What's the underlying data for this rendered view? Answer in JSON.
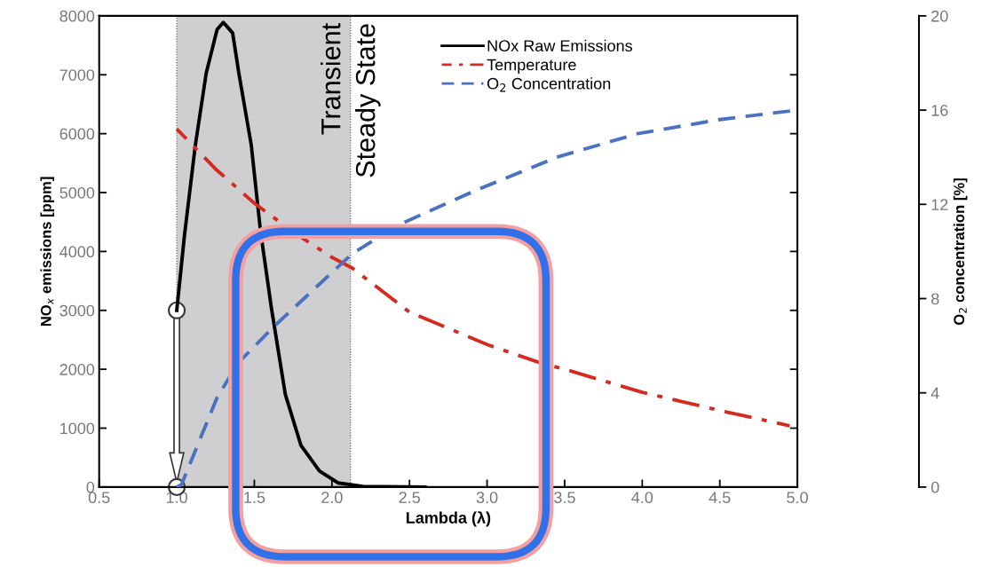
{
  "chart_data": {
    "type": "line",
    "xlabel": "Lambda (λ)",
    "ylabel": "NO$_{x}$ emissions [ppm]",
    "y2label": "O$_{2}$ concentration [%]",
    "xlim": [
      0.5,
      5.0
    ],
    "xticks": [
      {
        "value": 0.5,
        "label": "0.5"
      },
      {
        "value": 1,
        "label": "1.0"
      },
      {
        "value": 1.5,
        "label": "1.5"
      },
      {
        "value": 2,
        "label": "2.0"
      },
      {
        "value": 2.5,
        "label": "2.5"
      },
      {
        "value": 3,
        "label": "3.0"
      },
      {
        "value": 3.5,
        "label": "3.5"
      },
      {
        "value": 4,
        "label": "4.0"
      },
      {
        "value": 4.5,
        "label": "4.5"
      },
      {
        "value": 5,
        "label": "5.0"
      }
    ],
    "ylim": [
      0,
      8000
    ],
    "yticks": [
      0,
      1000,
      2000,
      3000,
      4000,
      5000,
      6000,
      7000,
      8000
    ],
    "y2lim": [
      0,
      20
    ],
    "y2ticks": [
      0,
      4,
      8,
      12,
      16,
      20
    ],
    "series": [
      {
        "name": "NOx Raw Emissions",
        "color": "#000000",
        "line_style": "solid",
        "x": [
          1.0,
          1.05,
          1.12,
          1.19,
          1.26,
          1.3,
          1.36,
          1.4,
          1.48,
          1.54,
          1.61,
          1.7,
          1.8,
          1.92,
          2.04,
          2.2,
          2.6
        ],
        "values": [
          3000,
          4280,
          5810,
          7030,
          7770,
          7890,
          7710,
          7030,
          5810,
          4340,
          3040,
          1570,
          710,
          270,
          70,
          10,
          0
        ]
      },
      {
        "name": "Temperature",
        "color": "#d42a1f",
        "line_style": "dashdot",
        "x": [
          1.0,
          1.25,
          1.5,
          1.75,
          2.0,
          2.13,
          2.5,
          3.0,
          3.33,
          3.5,
          4.0,
          4.5,
          4.95
        ],
        "values": [
          6080,
          5400,
          4820,
          4330,
          3900,
          3720,
          2970,
          2420,
          2120,
          2000,
          1610,
          1300,
          1040
        ]
      },
      {
        "name": "O$_{2}$ Concentration",
        "color": "#4a72c0",
        "line_style": "dashed",
        "axis": "y2",
        "x": [
          1.0,
          1.03,
          1.26,
          1.4,
          1.64,
          2.13,
          2.42,
          2.93,
          3.45,
          3.97,
          4.5,
          5.0
        ],
        "values": [
          0,
          0.1,
          3.8,
          5.3,
          6.9,
          9.9,
          11.1,
          12.6,
          14.0,
          15.0,
          15.6,
          16.0
        ]
      }
    ],
    "bands": [
      {
        "axis": "x",
        "from": 1.0,
        "to": 2.12,
        "label": "Transient",
        "color": "#cfcfd1"
      }
    ],
    "annotations": [
      "Steady State"
    ],
    "legend": "top",
    "grid": false
  }
}
